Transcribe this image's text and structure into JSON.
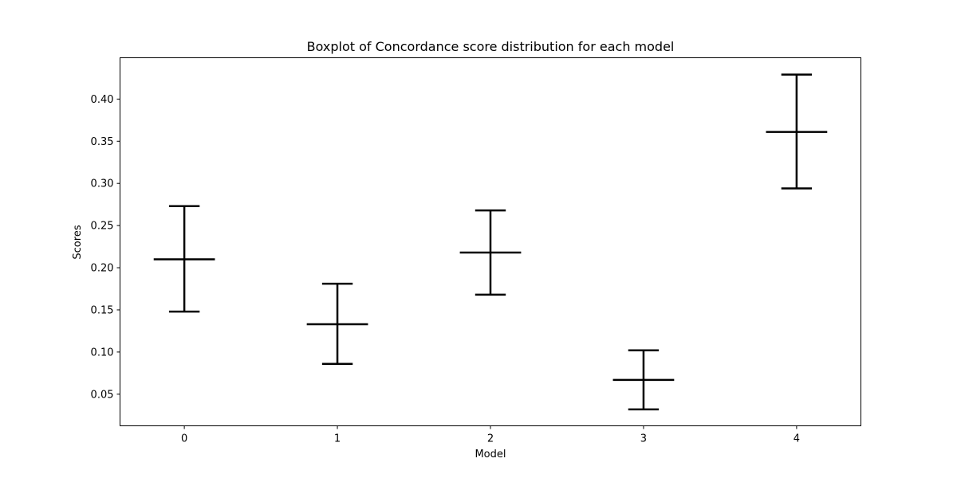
{
  "chart_data": {
    "type": "errorbar",
    "title": "Boxplot of Concordance score distribution for each model",
    "xlabel": "Model",
    "ylabel": "Scores",
    "categories": [
      "0",
      "1",
      "2",
      "3",
      "4"
    ],
    "x": [
      0,
      1,
      2,
      3,
      4
    ],
    "center": [
      0.21,
      0.133,
      0.218,
      0.067,
      0.361
    ],
    "lower": [
      0.148,
      0.086,
      0.168,
      0.032,
      0.294
    ],
    "upper": [
      0.273,
      0.181,
      0.268,
      0.102,
      0.429
    ],
    "xlim": [
      -0.42,
      4.42
    ],
    "ylim": [
      0.0125,
      0.449
    ],
    "yticks": [
      0.05,
      0.1,
      0.15,
      0.2,
      0.25,
      0.3,
      0.35,
      0.4
    ],
    "ytick_labels": [
      "0.05",
      "0.10",
      "0.15",
      "0.20",
      "0.25",
      "0.30",
      "0.35",
      "0.40"
    ],
    "xtick_labels": [
      "0",
      "1",
      "2",
      "3",
      "4"
    ],
    "grid": false,
    "color": "#000000"
  }
}
